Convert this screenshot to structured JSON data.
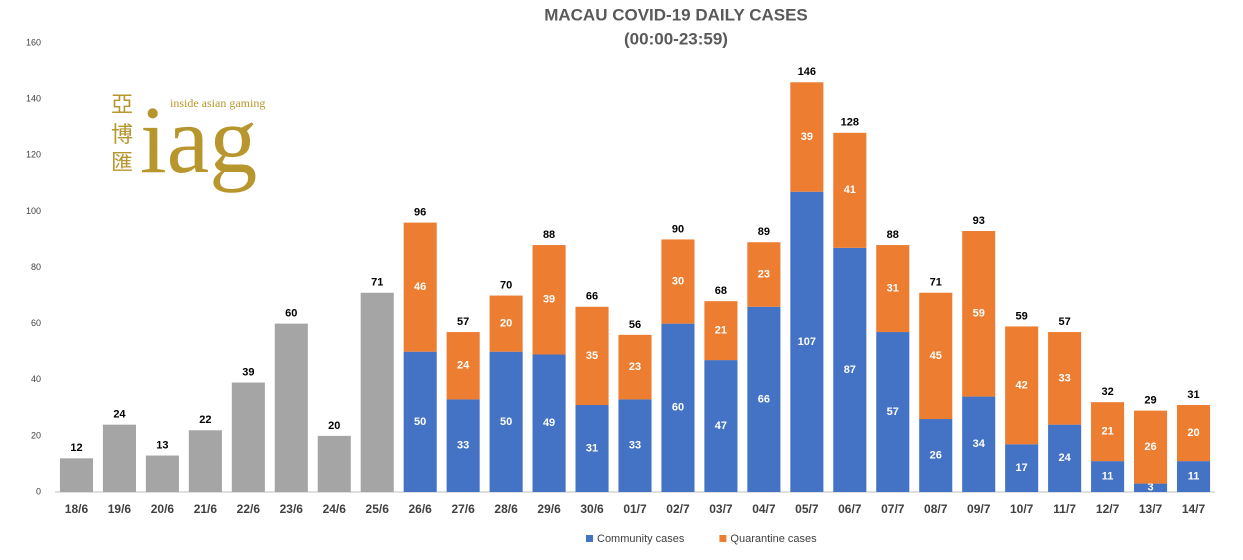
{
  "chart_data": {
    "type": "bar",
    "stacked": true,
    "title": "MACAU COVID-19 DAILY CASES",
    "subtitle": "(00:00-23:59)",
    "logo": {
      "mark": "iag",
      "tagline": "inside asian gaming",
      "chinese": [
        "亞",
        "博",
        "匯"
      ]
    },
    "categories": [
      "18/6",
      "19/6",
      "20/6",
      "21/6",
      "22/6",
      "23/6",
      "24/6",
      "25/6",
      "26/6",
      "27/6",
      "28/6",
      "29/6",
      "30/6",
      "01/7",
      "02/7",
      "03/7",
      "04/7",
      "05/7",
      "06/7",
      "07/7",
      "08/7",
      "09/7",
      "10/7",
      "11/7",
      "12/7",
      "13/7",
      "14/7"
    ],
    "series": [
      {
        "color": "#a5a5a5",
        "values": [
          12,
          24,
          13,
          22,
          39,
          60,
          20,
          71,
          null,
          null,
          null,
          null,
          null,
          null,
          null,
          null,
          null,
          null,
          null,
          null,
          null,
          null,
          null,
          null,
          null,
          null,
          null
        ]
      },
      {
        "name": "Community cases",
        "color": "#4472c4",
        "values": [
          null,
          null,
          null,
          null,
          null,
          null,
          null,
          null,
          50,
          33,
          50,
          49,
          31,
          33,
          60,
          47,
          66,
          107,
          87,
          57,
          26,
          34,
          17,
          24,
          11,
          3,
          11
        ]
      },
      {
        "name": "Quarantine cases",
        "color": "#ed7d31",
        "values": [
          null,
          null,
          null,
          null,
          null,
          null,
          null,
          null,
          46,
          24,
          20,
          39,
          35,
          23,
          30,
          21,
          23,
          39,
          41,
          31,
          45,
          59,
          42,
          33,
          21,
          26,
          20
        ]
      }
    ],
    "totals": [
      12,
      24,
      13,
      22,
      39,
      60,
      20,
      71,
      96,
      57,
      70,
      88,
      66,
      56,
      90,
      68,
      89,
      146,
      128,
      88,
      71,
      93,
      59,
      57,
      32,
      29,
      31
    ],
    "ylim": [
      0,
      160
    ],
    "yticks": [
      0,
      20,
      40,
      60,
      80,
      100,
      120,
      140,
      160
    ],
    "grid": false,
    "legend": "bottom"
  }
}
